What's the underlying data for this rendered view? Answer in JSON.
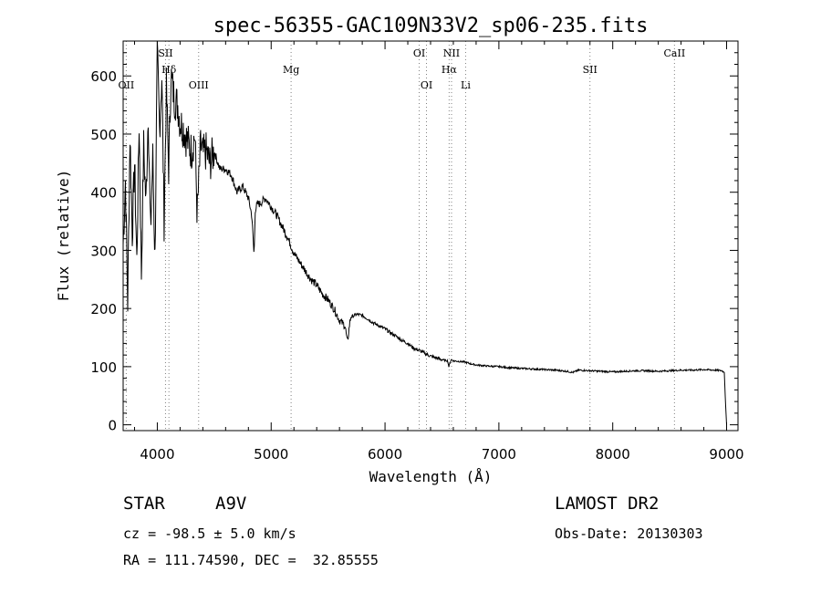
{
  "chart_data": {
    "type": "line",
    "title": "spec-56355-GAC109N33V2_sp06-235.fits",
    "xlabel": "Wavelength (Å)",
    "ylabel": "Flux (relative)",
    "xlim": [
      3700,
      9100
    ],
    "ylim": [
      -10,
      660
    ],
    "x_ticks": [
      4000,
      5000,
      6000,
      7000,
      8000,
      9000
    ],
    "y_ticks": [
      0,
      100,
      200,
      300,
      400,
      500,
      600
    ],
    "grid": false,
    "line_color": "#000000",
    "marker_color": "#808080",
    "spectral_lines": [
      {
        "label": "Hδ",
        "wavelength": 4102,
        "row": 1
      },
      {
        "label": "OII",
        "wavelength": 3727,
        "row": 2
      },
      {
        "label": "SII",
        "wavelength": 4072,
        "row": 0
      },
      {
        "label": "OIII",
        "wavelength": 4363,
        "row": 2
      },
      {
        "label": "Mg",
        "wavelength": 5175,
        "row": 1
      },
      {
        "label": "OI",
        "wavelength": 6300,
        "row": 0
      },
      {
        "label": "OI",
        "wavelength": 6364,
        "row": 2
      },
      {
        "label": "NII",
        "wavelength": 6584,
        "row": 0
      },
      {
        "label": "Hα",
        "wavelength": 6563,
        "row": 1
      },
      {
        "label": "Li",
        "wavelength": 6708,
        "row": 2
      },
      {
        "label": "SII",
        "wavelength": 7800,
        "row": 1
      },
      {
        "label": "CaII",
        "wavelength": 8542,
        "row": 0
      }
    ],
    "series": [
      {
        "x": [
          3700,
          3720,
          3740,
          3760,
          3780,
          3800,
          3820,
          3840,
          3860,
          3880,
          3900,
          3920,
          3940,
          3960,
          3980,
          4000,
          4020,
          4040,
          4060,
          4080,
          4100,
          4120,
          4150,
          4180,
          4200,
          4230,
          4260,
          4300,
          4330,
          4350,
          4380,
          4400,
          4430,
          4460,
          4500,
          4550,
          4600,
          4650,
          4700,
          4750,
          4800,
          4830,
          4850,
          4860,
          4880,
          4900,
          4950,
          5000,
          5050,
          5100,
          5150,
          5200,
          5250,
          5300,
          5350,
          5400,
          5450,
          5500,
          5550,
          5600,
          5650,
          5670,
          5690,
          5700,
          5750,
          5800,
          5850,
          5900,
          5950,
          6000,
          6050,
          6100,
          6150,
          6200,
          6250,
          6300,
          6350,
          6400,
          6450,
          6500,
          6550,
          6560,
          6580,
          6600,
          6650,
          6700,
          6750,
          6800,
          6900,
          7000,
          7100,
          7200,
          7300,
          7400,
          7500,
          7600,
          7650,
          7700,
          7800,
          7900,
          8000,
          8100,
          8200,
          8300,
          8400,
          8500,
          8600,
          8700,
          8800,
          8900,
          8960,
          8980,
          8990,
          9000
        ],
        "y": [
          310,
          420,
          210,
          500,
          330,
          450,
          280,
          520,
          260,
          480,
          380,
          540,
          330,
          460,
          285,
          640,
          510,
          600,
          350,
          580,
          440,
          600,
          560,
          550,
          520,
          510,
          490,
          470,
          500,
          360,
          480,
          465,
          470,
          450,
          470,
          440,
          440,
          430,
          400,
          410,
          390,
          360,
          290,
          370,
          380,
          380,
          390,
          375,
          360,
          340,
          320,
          295,
          280,
          265,
          250,
          240,
          225,
          215,
          200,
          180,
          170,
          140,
          175,
          185,
          190,
          188,
          182,
          175,
          170,
          165,
          158,
          152,
          145,
          140,
          132,
          128,
          123,
          118,
          115,
          112,
          110,
          100,
          112,
          110,
          109,
          108,
          105,
          103,
          101,
          100,
          98,
          97,
          96,
          95,
          94,
          92,
          90,
          94,
          93,
          92,
          91,
          92,
          93,
          93,
          92,
          93,
          94,
          94,
          95,
          94,
          93,
          90,
          40,
          0
        ]
      }
    ]
  },
  "info": {
    "object_type": "STAR",
    "spectral_class": "A9V",
    "survey": "LAMOST DR2",
    "velocity": "cz = -98.5 ± 5.0 km/s",
    "obs_date": "Obs-Date: 20130303",
    "coords": "RA = 111.74590, DEC =  32.85555"
  }
}
